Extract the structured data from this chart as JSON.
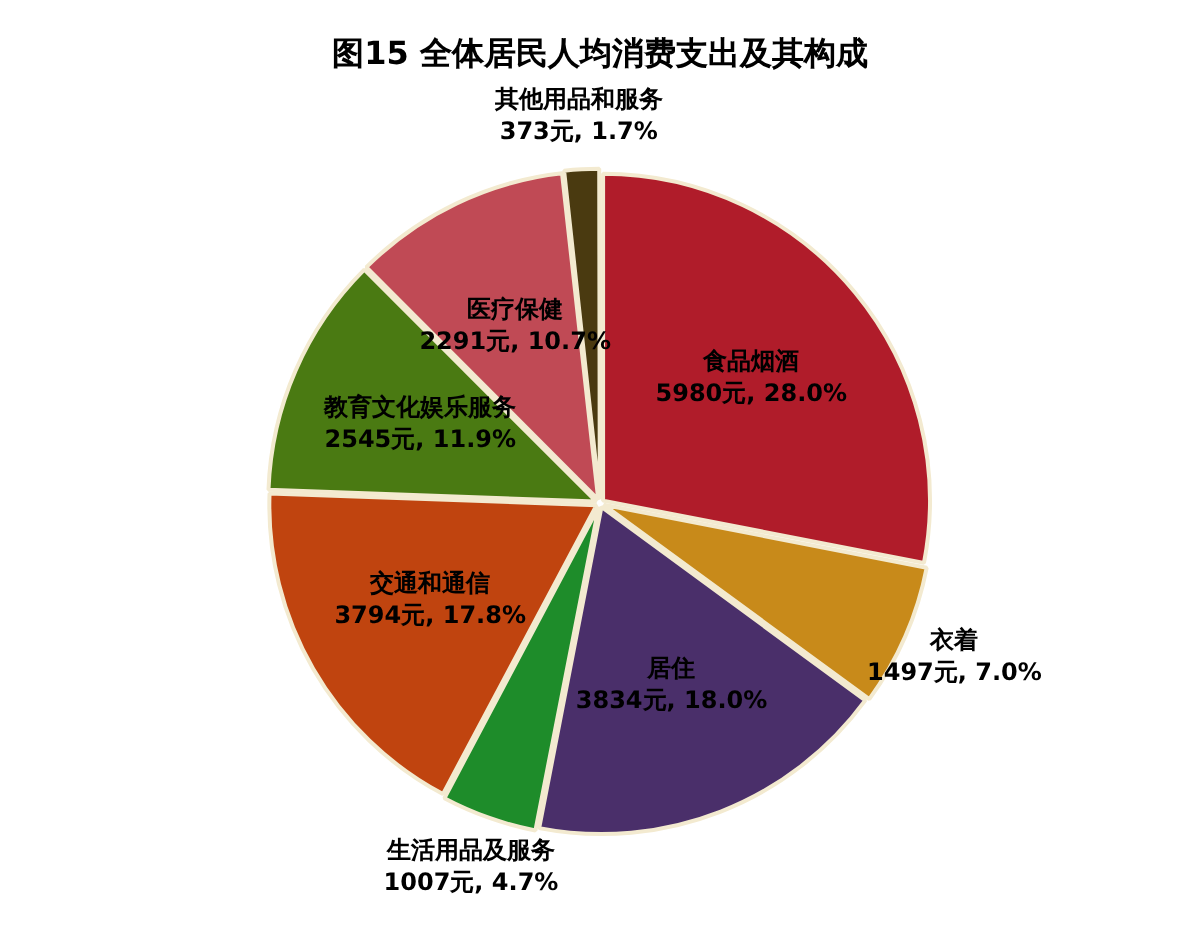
{
  "chart_data": {
    "type": "pie",
    "title": "图15 全体居民人均消费支出及其构成",
    "categories": [
      "食品烟酒",
      "衣着",
      "居住",
      "生活用品及服务",
      "交通和通信",
      "教育文化娱乐服务",
      "医疗保健",
      "其他用品和服务"
    ],
    "values": [
      5980,
      1497,
      3834,
      1007,
      3794,
      2545,
      2291,
      373
    ],
    "value_labels": [
      "5980元, 28.0%",
      "1497元, 7.0%",
      "3834元, 18.0%",
      "1007元, 4.7%",
      "3794元, 17.8%",
      "2545元, 11.9%",
      "2291元, 10.7%",
      "373元, 1.7%"
    ],
    "colors": [
      "#b01c2a",
      "#c88a1a",
      "#4a2f6a",
      "#1e8c2a",
      "#c0440f",
      "#4a7a12",
      "#c04a55",
      "#4a3a10"
    ],
    "legend": false
  }
}
